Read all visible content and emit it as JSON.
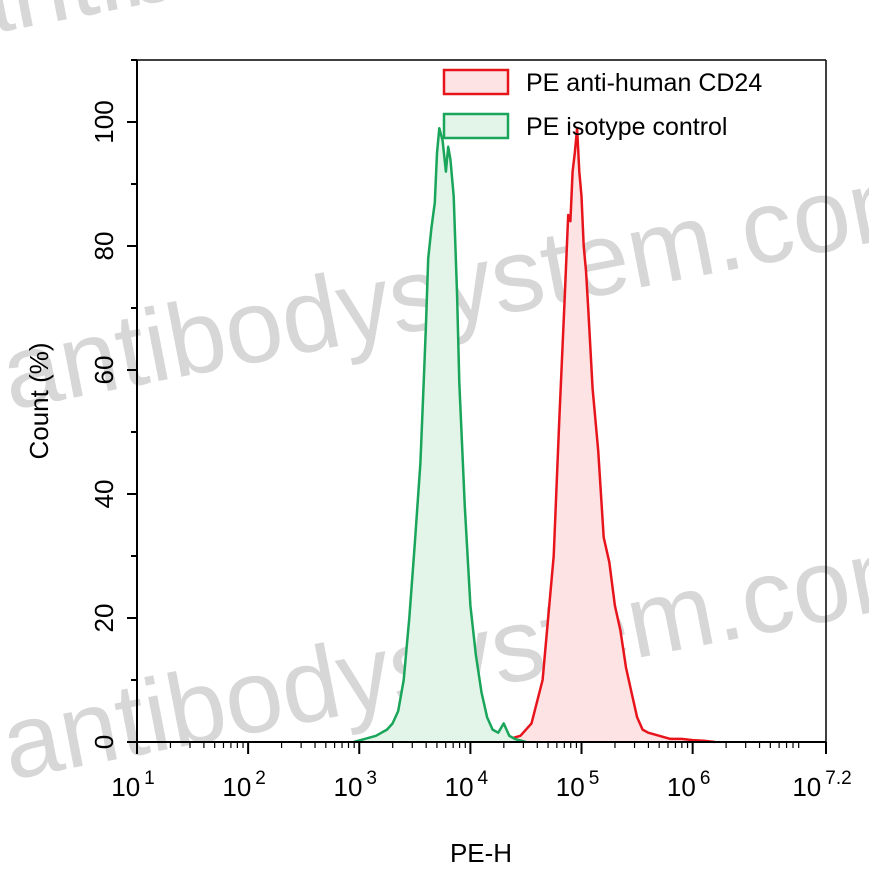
{
  "chart_data": {
    "type": "area",
    "xlabel": "PE-H",
    "ylabel": "Count  (%)",
    "x_scale": "log",
    "xlim": [
      1,
      7.2
    ],
    "ylim": [
      0,
      110
    ],
    "x_ticks": [
      {
        "base": "10",
        "exp": "1"
      },
      {
        "base": "10",
        "exp": "2"
      },
      {
        "base": "10",
        "exp": "3"
      },
      {
        "base": "10",
        "exp": "4"
      },
      {
        "base": "10",
        "exp": "5"
      },
      {
        "base": "10",
        "exp": "6"
      },
      {
        "base": "10",
        "exp": "7.2"
      }
    ],
    "y_ticks": [
      "0",
      "20",
      "40",
      "60",
      "80",
      "100"
    ],
    "legend_position": "top-right",
    "series": [
      {
        "name": "PE anti-human CD24",
        "color": "#e8141c",
        "fill": "#fde3e3",
        "x": [
          4.25,
          4.35,
          4.45,
          4.55,
          4.65,
          4.75,
          4.8,
          4.85,
          4.88,
          4.9,
          4.92,
          4.94,
          4.96,
          4.98,
          5.0,
          5.02,
          5.04,
          5.06,
          5.1,
          5.15,
          5.2,
          5.25,
          5.3,
          5.35,
          5.4,
          5.45,
          5.5,
          5.55,
          5.6,
          5.7,
          5.8,
          5.9,
          6.0,
          6.1,
          6.2
        ],
        "y": [
          0,
          0.5,
          1,
          3,
          10,
          30,
          52,
          72,
          85,
          84,
          92,
          95,
          99,
          92,
          88,
          80,
          76,
          70,
          57,
          47,
          33,
          29,
          22,
          18,
          12,
          8,
          4,
          2,
          1.5,
          1,
          0.5,
          0.5,
          0.3,
          0.2,
          0
        ]
      },
      {
        "name": "PE isotype control",
        "color": "#19a55a",
        "fill": "#e3f4e9",
        "x": [
          2.95,
          3.05,
          3.15,
          3.25,
          3.3,
          3.35,
          3.4,
          3.45,
          3.5,
          3.55,
          3.58,
          3.6,
          3.62,
          3.65,
          3.68,
          3.7,
          3.72,
          3.75,
          3.78,
          3.8,
          3.82,
          3.85,
          3.88,
          3.9,
          3.95,
          4.0,
          4.05,
          4.1,
          4.15,
          4.2,
          4.25,
          4.3,
          4.35,
          4.4,
          4.5
        ],
        "y": [
          0,
          0.5,
          1,
          2,
          3,
          5,
          10,
          20,
          32,
          45,
          58,
          67,
          78,
          83,
          87,
          95,
          99,
          97,
          92,
          96,
          94,
          88,
          72,
          58,
          38,
          22,
          14,
          8,
          4,
          2,
          1.5,
          3,
          1,
          0.5,
          0
        ]
      }
    ]
  },
  "watermark": {
    "text_1": "antibodysystem.com",
    "text_2": "antibodysystem.com",
    "text_3": "antibodysystem.com"
  }
}
